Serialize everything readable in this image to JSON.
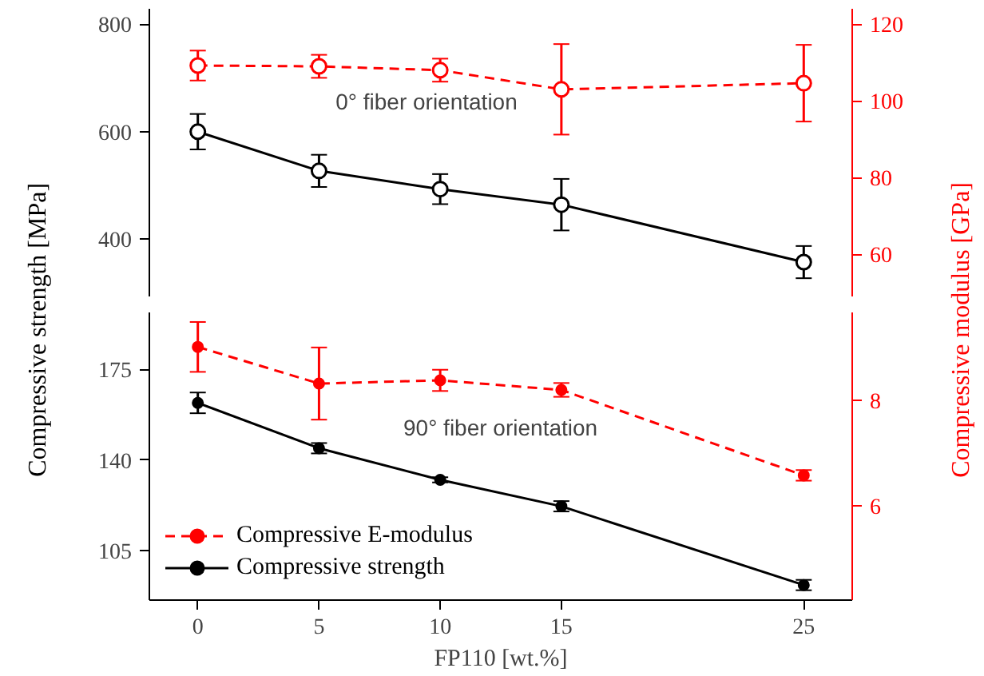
{
  "chart_data": [
    {
      "type": "line",
      "ylabel": "Compressive strength [MPa]",
      "y2label": "Compressive modulus [GPa]",
      "x": [
        0,
        5,
        10,
        15,
        25
      ],
      "xlim": [
        -2,
        27
      ],
      "ylim": [
        293,
        829
      ],
      "yticks": [
        400,
        600,
        800
      ],
      "y2lim": [
        49,
        124
      ],
      "y2ticks": [
        60,
        80,
        100,
        120
      ],
      "marker": "circle",
      "grid": false,
      "legend": false,
      "tick_labels": "y",
      "annotations": [
        "0° fiber orientation"
      ],
      "series": [
        {
          "color": "#ff0000",
          "axis": "y2",
          "line_style": "dashed",
          "values": [
            109.2,
            109,
            108,
            103,
            104.6
          ],
          "errors": [
            3.9,
            3,
            3,
            11.8,
            10
          ]
        },
        {
          "color": "#000000",
          "line_style": "solid",
          "values": [
            600,
            527,
            493,
            464,
            357
          ],
          "errors": [
            33,
            30,
            28,
            48,
            30
          ]
        }
      ]
    },
    {
      "type": "line",
      "xlabel": "FP110 [wt.%]",
      "x": [
        0,
        5,
        10,
        15,
        25
      ],
      "xlim": [
        -2,
        27
      ],
      "xticks": [
        0,
        5,
        10,
        15,
        25
      ],
      "ylim": [
        86,
        197
      ],
      "yticks": [
        105,
        140,
        175
      ],
      "y2lim": [
        4.23,
        9.65
      ],
      "y2ticks": [
        6,
        8
      ],
      "marker": "circle",
      "grid": false,
      "legend": "bottom left",
      "annotations": [
        "90° fiber orientation"
      ],
      "series": [
        {
          "name": "Compressive E-modulus",
          "color": "#ff0000",
          "axis": "y2",
          "line_style": "dashed",
          "values": [
            9.0,
            8.31,
            8.37,
            8.19,
            6.58
          ],
          "errors": [
            0.47,
            0.68,
            0.2,
            0.13,
            0.1
          ]
        },
        {
          "name": "Compressive strength",
          "color": "#000000",
          "line_style": "solid",
          "values": [
            162.1,
            144.6,
            132.4,
            122.2,
            91.8
          ],
          "errors": [
            4,
            2,
            1,
            2,
            2
          ]
        }
      ]
    }
  ]
}
